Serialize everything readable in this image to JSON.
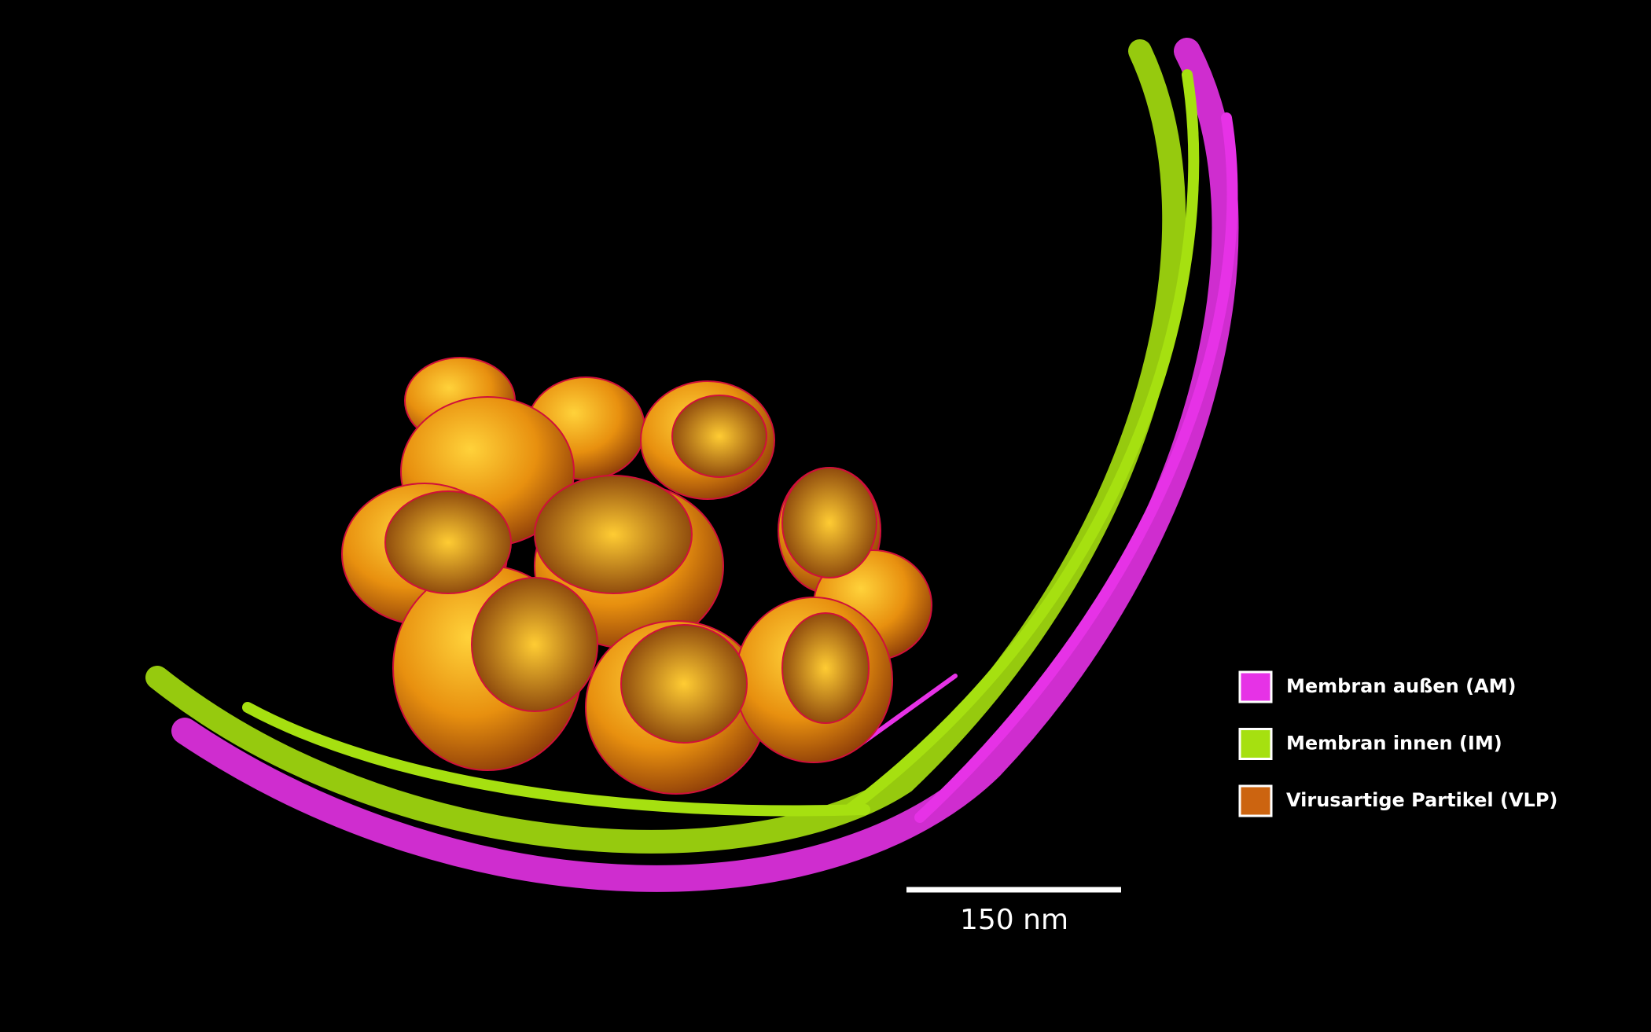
{
  "legend": [
    {
      "label": "Membran außen  (AM)",
      "color": "#e632e6"
    },
    {
      "label": "Membran innen (IM)",
      "color": "#a6e010"
    },
    {
      "label": "Virusartige Partikel (VLP)",
      "color": "#cc6410"
    }
  ],
  "scale_bar": {
    "label": "150 nm"
  }
}
